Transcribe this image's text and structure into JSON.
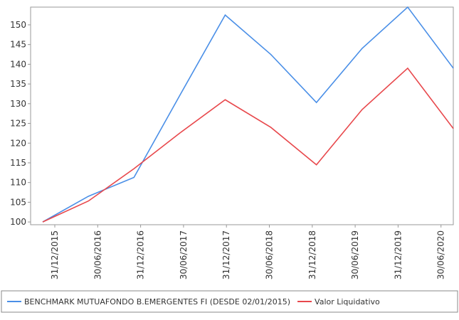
{
  "chart_data": {
    "type": "line",
    "categories": [
      "31/12/2015",
      "30/06/2016",
      "31/12/2016",
      "30/06/2017",
      "31/12/2017",
      "30/06/2018",
      "31/12/2018",
      "30/06/2019",
      "31/12/2019",
      "30/06/2020"
    ],
    "series": [
      {
        "name": "BENCHMARK MUTUAFONDO B.EMERGENTES FI (DESDE 02/01/2015)",
        "color": "#4a8fe7",
        "values": [
          100,
          106.5,
          111.3,
          132,
          152.5,
          142.5,
          130.3,
          144,
          154.5,
          139
        ]
      },
      {
        "name": "Valor Liquidativo",
        "color": "#e8484c",
        "values": [
          100,
          105.3,
          113.5,
          122.5,
          131,
          124,
          114.5,
          128.5,
          139,
          123.7
        ]
      }
    ],
    "ylim": [
      99.3,
      154.5
    ],
    "yticks": [
      100,
      105,
      110,
      115,
      120,
      125,
      130,
      135,
      140,
      145,
      150
    ]
  }
}
